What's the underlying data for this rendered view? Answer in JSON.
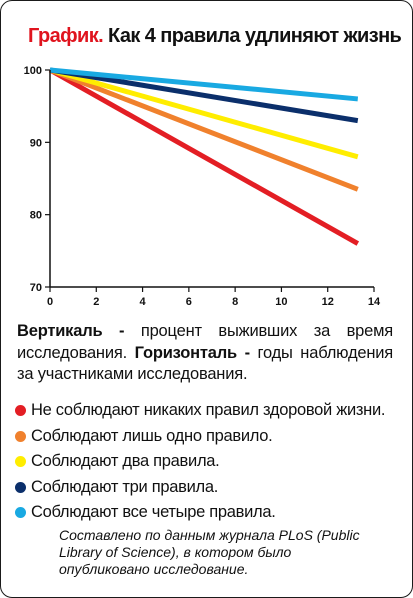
{
  "header": {
    "prefix": "График.",
    "title": "Как 4 правила удлиняют жизнь"
  },
  "chart_data": {
    "type": "line",
    "title": "Как 4 правила удлиняют жизнь",
    "xlabel": "",
    "ylabel": "",
    "x_ticks": [
      "0",
      "2",
      "4",
      "6",
      "8",
      "10",
      "12",
      "14"
    ],
    "y_ticks": [
      "70",
      "80",
      "90",
      "100"
    ],
    "xlim": [
      0,
      14
    ],
    "ylim": [
      70,
      100
    ],
    "grid": false,
    "series": [
      {
        "color": "#e31e24",
        "x": [
          0,
          13.3
        ],
        "y": [
          100,
          76
        ]
      },
      {
        "color": "#f0812d",
        "x": [
          0,
          13.3
        ],
        "y": [
          100,
          83.5
        ]
      },
      {
        "color": "#ffed00",
        "x": [
          0,
          13.3
        ],
        "y": [
          100,
          88
        ]
      },
      {
        "color": "#0b2f6b",
        "x": [
          0,
          13.3
        ],
        "y": [
          100,
          93
        ]
      },
      {
        "color": "#19a9e2",
        "x": [
          0,
          13.3
        ],
        "y": [
          100,
          96
        ]
      }
    ]
  },
  "description": {
    "vertical_label": "Вертикаль -",
    "vertical_text": " процент выживших за время исследования. ",
    "horizontal_label": "Горизонталь -",
    "horizontal_text": " годы наблюдения за участниками исследования."
  },
  "legend": [
    {
      "color": "#e31e24",
      "label": "Не соблюдают никаких правил здоровой жизни."
    },
    {
      "color": "#f0812d",
      "label": "Соблюдают лишь одно правило."
    },
    {
      "color": "#ffed00",
      "label": "Соблюдают два правила."
    },
    {
      "color": "#0b2f6b",
      "label": "Соблюдают три правила."
    },
    {
      "color": "#19a9e2",
      "label": "Соблюдают все четыре правила."
    }
  ],
  "source": "Составлено по данным журнала PLoS (Public Library of Science), в котором было опубликовано исследование."
}
